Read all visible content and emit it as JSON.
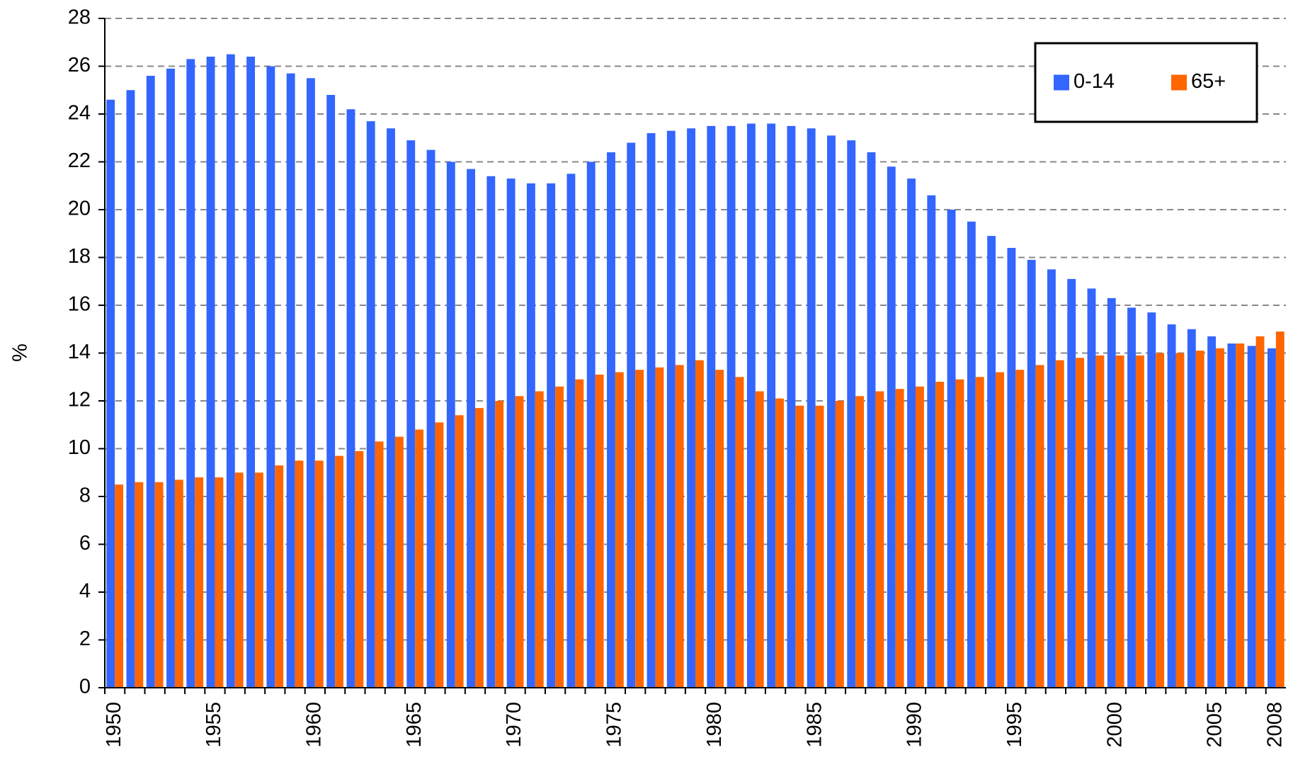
{
  "chart_data": {
    "type": "bar",
    "y_label": "%",
    "categories": [
      "1950",
      null,
      null,
      null,
      null,
      "1955",
      null,
      null,
      null,
      null,
      "1960",
      null,
      null,
      null,
      null,
      "1965",
      null,
      null,
      null,
      null,
      "1970",
      null,
      null,
      null,
      null,
      "1975",
      null,
      null,
      null,
      null,
      "1980",
      null,
      null,
      null,
      null,
      "1985",
      null,
      null,
      null,
      null,
      "1990",
      null,
      null,
      null,
      null,
      "1995",
      null,
      null,
      null,
      null,
      "2000",
      null,
      null,
      null,
      null,
      "2005",
      null,
      null,
      "2008"
    ],
    "series": [
      {
        "name": "0-14",
        "color": "#3366ff",
        "values": [
          24.6,
          25.0,
          25.6,
          25.9,
          26.3,
          26.4,
          26.5,
          26.4,
          26.0,
          25.7,
          25.5,
          24.8,
          24.2,
          23.7,
          23.4,
          22.9,
          22.5,
          22.0,
          21.7,
          21.4,
          21.3,
          21.1,
          21.1,
          21.5,
          22.0,
          22.4,
          22.8,
          23.2,
          23.3,
          23.4,
          23.5,
          23.5,
          23.6,
          23.6,
          23.5,
          23.4,
          23.1,
          22.9,
          22.4,
          21.8,
          21.3,
          20.6,
          20.0,
          19.5,
          18.9,
          18.4,
          17.9,
          17.5,
          17.1,
          16.7,
          16.3,
          15.9,
          15.7,
          15.2,
          15.0,
          14.7,
          14.4,
          14.3,
          14.2
        ]
      },
      {
        "name": "65+",
        "color": "#ff6600",
        "values": [
          8.5,
          8.6,
          8.6,
          8.7,
          8.8,
          8.8,
          9.0,
          9.0,
          9.3,
          9.5,
          9.5,
          9.7,
          9.9,
          10.3,
          10.5,
          10.8,
          11.1,
          11.4,
          11.7,
          12.0,
          12.2,
          12.4,
          12.6,
          12.9,
          13.1,
          13.2,
          13.3,
          13.4,
          13.5,
          13.7,
          13.3,
          13.0,
          12.4,
          12.1,
          11.8,
          11.8,
          12.0,
          12.2,
          12.4,
          12.5,
          12.6,
          12.8,
          12.9,
          13.0,
          13.2,
          13.3,
          13.5,
          13.7,
          13.8,
          13.9,
          13.9,
          13.9,
          14.0,
          14.0,
          14.1,
          14.2,
          14.4,
          14.7,
          14.9
        ]
      }
    ],
    "ylim": [
      0,
      28
    ],
    "yticks": [
      0,
      2,
      4,
      6,
      8,
      10,
      12,
      14,
      16,
      18,
      20,
      22,
      24,
      26,
      28
    ],
    "grid": true,
    "legend": "upper right"
  }
}
